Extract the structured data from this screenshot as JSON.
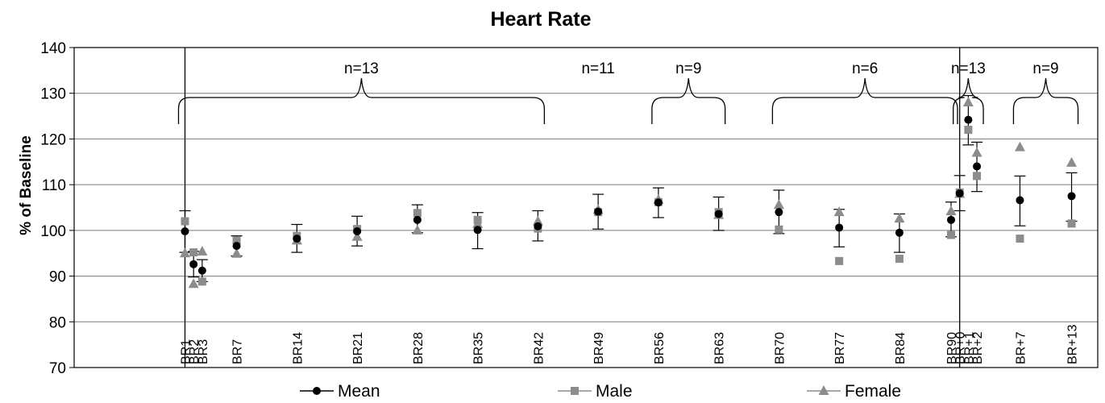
{
  "chart_data": {
    "type": "scatter",
    "title": "Heart Rate",
    "ylabel": "% of Baseline",
    "xlabel": "",
    "ylim": [
      70,
      140
    ],
    "yticks": [
      70,
      80,
      90,
      100,
      110,
      120,
      130,
      140
    ],
    "grid": "horizontal",
    "legend_position": "bottom",
    "categories": [
      "BR1",
      "BR2",
      "BR3",
      "BR7",
      "BR14",
      "BR21",
      "BR28",
      "BR35",
      "BR42",
      "BR49",
      "BR56",
      "BR63",
      "BR70",
      "BR77",
      "BR84",
      "BR90",
      "BR+0",
      "BR+1",
      "BR+2",
      "BR+7",
      "BR+13"
    ],
    "category_x_days": [
      -90,
      -89,
      -88,
      -84,
      -77,
      -70,
      -63,
      -56,
      -49,
      -42,
      -35,
      -28,
      -21,
      -14,
      -7,
      -1,
      0,
      1,
      2,
      7,
      13
    ],
    "series": [
      {
        "name": "Mean",
        "marker": "circle",
        "color": "#000000",
        "values": [
          99.8,
          92.6,
          91.2,
          96.6,
          98.2,
          99.8,
          102.3,
          100.1,
          100.9,
          104.1,
          106.1,
          103.6,
          104.0,
          100.6,
          99.5,
          102.3,
          108.1,
          124.2,
          114.0,
          106.6,
          107.5
        ],
        "error_low": [
          95.2,
          89.8,
          88.8,
          94.4,
          95.2,
          96.6,
          99.5,
          96.0,
          97.7,
          100.3,
          102.8,
          100.0,
          99.3,
          96.4,
          95.2,
          98.6,
          104.3,
          118.7,
          108.5,
          101.0,
          102.0
        ],
        "error_high": [
          104.3,
          95.4,
          93.6,
          98.8,
          101.3,
          103.1,
          105.6,
          103.9,
          104.3,
          107.9,
          109.3,
          107.3,
          108.8,
          104.6,
          103.6,
          106.2,
          112.0,
          129.5,
          119.3,
          111.9,
          112.6
        ]
      },
      {
        "name": "Male",
        "marker": "square",
        "color": "#8c8c8c",
        "values": [
          102.0,
          95.2,
          88.8,
          97.8,
          98.8,
          100.3,
          103.8,
          102.3,
          100.4,
          104.0,
          106.2,
          104.0,
          100.2,
          93.3,
          93.8,
          99.0,
          108.3,
          122.0,
          111.9,
          98.2,
          101.5
        ]
      },
      {
        "name": "Female",
        "marker": "triangle",
        "color": "#8c8c8c",
        "values": [
          95.0,
          88.3,
          95.4,
          94.9,
          97.8,
          98.6,
          100.0,
          101.4,
          102.0,
          104.5,
          106.7,
          103.4,
          105.6,
          104.0,
          102.6,
          104.2,
          108.0,
          128.0,
          117.0,
          118.2,
          114.8
        ]
      }
    ],
    "braces": [
      {
        "label": "n=13",
        "from_day": -90,
        "to_day": -49
      },
      {
        "label": "n=11",
        "at_day": -42
      },
      {
        "label": "n=9",
        "from_day": -35,
        "to_day": -28
      },
      {
        "label": "n=6",
        "from_day": -21,
        "to_day": -1
      },
      {
        "label": "n=13",
        "from_day": 0,
        "to_day": 2
      },
      {
        "label": "n=9",
        "from_day": 7,
        "to_day": 13
      }
    ],
    "vertical_markers_days": [
      -90,
      0
    ]
  }
}
